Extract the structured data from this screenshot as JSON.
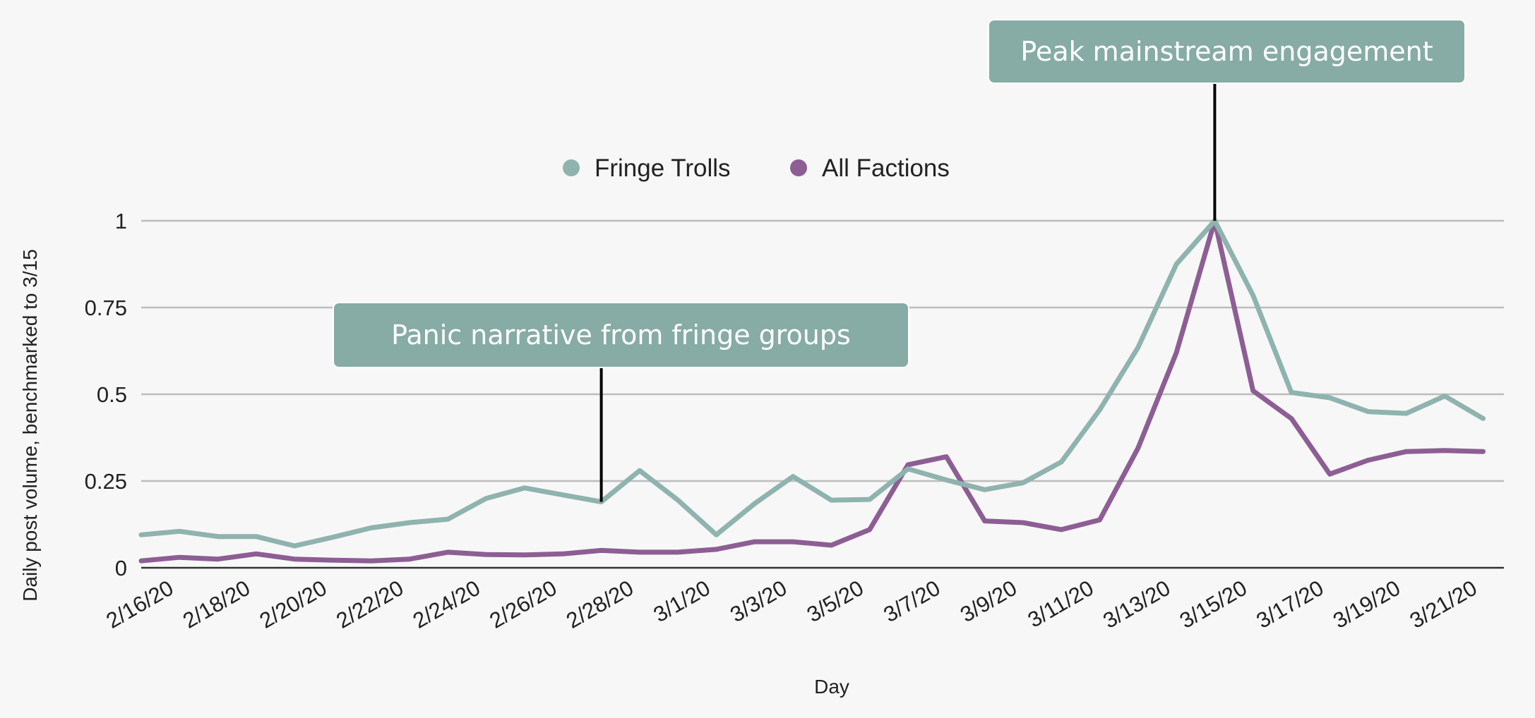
{
  "chart_data": {
    "type": "line",
    "xlabel": "Day",
    "ylabel": "Daily post volume, benchmarked to 3/15",
    "ylim": [
      0,
      1
    ],
    "yticks": [
      "0",
      "0.25",
      "0.5",
      "0.75",
      "1"
    ],
    "ytick_values": [
      0,
      0.25,
      0.5,
      0.75,
      1
    ],
    "grid": true,
    "legend_position": "top-center",
    "x": [
      "2/16/20",
      "2/17/20",
      "2/18/20",
      "2/19/20",
      "2/20/20",
      "2/21/20",
      "2/22/20",
      "2/23/20",
      "2/24/20",
      "2/25/20",
      "2/26/20",
      "2/27/20",
      "2/28/20",
      "2/29/20",
      "3/1/20",
      "3/2/20",
      "3/3/20",
      "3/4/20",
      "3/5/20",
      "3/6/20",
      "3/7/20",
      "3/8/20",
      "3/9/20",
      "3/10/20",
      "3/11/20",
      "3/12/20",
      "3/13/20",
      "3/14/20",
      "3/15/20",
      "3/16/20",
      "3/17/20",
      "3/18/20",
      "3/19/20",
      "3/20/20",
      "3/21/20",
      "3/22/20"
    ],
    "xtick_labels": [
      "2/16/20",
      "2/18/20",
      "2/20/20",
      "2/22/20",
      "2/24/20",
      "2/26/20",
      "2/28/20",
      "3/1/20",
      "3/3/20",
      "3/5/20",
      "3/7/20",
      "3/9/20",
      "3/11/20",
      "3/13/20",
      "3/15/20",
      "3/17/20",
      "3/19/20",
      "3/21/20"
    ],
    "series": [
      {
        "name": "Fringe Trolls",
        "color": "#8fb3ae",
        "values": [
          0.095,
          0.105,
          0.09,
          0.09,
          0.063,
          0.088,
          0.115,
          0.13,
          0.14,
          0.2,
          0.23,
          0.21,
          0.19,
          0.28,
          0.195,
          0.095,
          0.185,
          0.263,
          0.195,
          0.197,
          0.285,
          0.253,
          0.225,
          0.245,
          0.305,
          0.455,
          0.635,
          0.875,
          1.0,
          0.785,
          0.505,
          0.49,
          0.45,
          0.445,
          0.495,
          0.43
        ]
      },
      {
        "name": "All Factions",
        "color": "#8d5e94",
        "values": [
          0.02,
          0.03,
          0.025,
          0.04,
          0.025,
          0.022,
          0.02,
          0.025,
          0.045,
          0.038,
          0.037,
          0.04,
          0.05,
          0.045,
          0.045,
          0.053,
          0.075,
          0.075,
          0.065,
          0.11,
          0.297,
          0.32,
          0.135,
          0.13,
          0.11,
          0.138,
          0.345,
          0.62,
          1.0,
          0.51,
          0.43,
          0.27,
          0.31,
          0.335,
          0.338,
          0.335
        ]
      }
    ],
    "annotations": [
      {
        "text": "Panic narrative from fringe groups",
        "x": "2/28/20",
        "series": "Fringe Trolls"
      },
      {
        "text": "Peak mainstream engagement",
        "x": "3/15/20",
        "series": "Fringe Trolls"
      }
    ]
  },
  "colors": {
    "background": "#f7f7f7",
    "gridline": "#bdbdbd",
    "axis": "#333333",
    "callout_fill": "#87aba5",
    "callout_text": "#ffffff",
    "text": "#222222"
  }
}
